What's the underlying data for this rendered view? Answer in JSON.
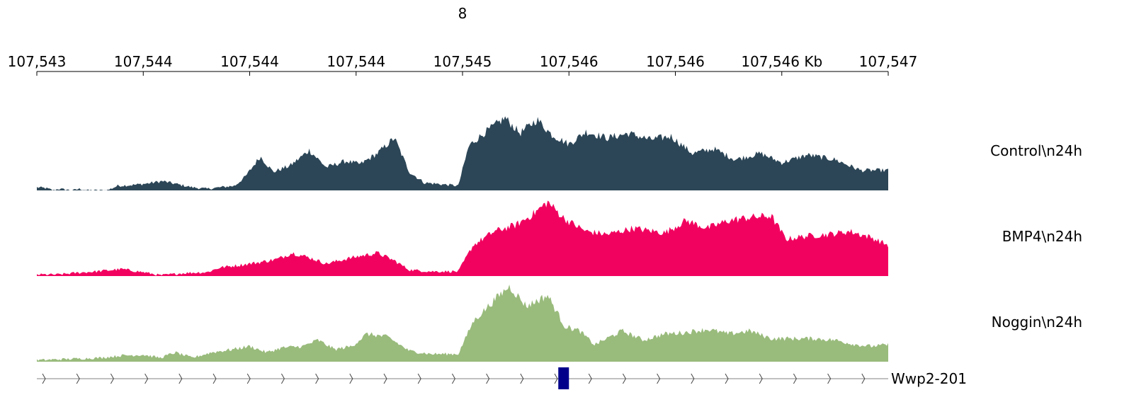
{
  "chart_data": {
    "type": "area",
    "title": "8",
    "xlim": [
      107543.0,
      107547.0
    ],
    "ticks": [
      {
        "value": 107543.0,
        "label": "107,543"
      },
      {
        "value": 107543.5,
        "label": "107,544"
      },
      {
        "value": 107544.0,
        "label": "107,544"
      },
      {
        "value": 107544.5,
        "label": "107,544"
      },
      {
        "value": 107545.0,
        "label": "107,545"
      },
      {
        "value": 107545.5,
        "label": "107,546"
      },
      {
        "value": 107546.0,
        "label": "107,546"
      },
      {
        "value": 107546.5,
        "label": "107,546 Kb"
      },
      {
        "value": 107547.0,
        "label": "107,547"
      }
    ],
    "ylim": [
      0,
      1
    ],
    "tracks": [
      {
        "name": "Control\\n24h",
        "color": "#2c4657",
        "profile": [
          [
            107543.0,
            0.04
          ],
          [
            107543.04,
            0.03
          ],
          [
            107543.08,
            0.0
          ],
          [
            107543.1,
            0.02
          ],
          [
            107543.17,
            0.0
          ],
          [
            107543.2,
            0.02
          ],
          [
            107543.24,
            0.0
          ],
          [
            107543.33,
            0.0
          ],
          [
            107543.38,
            0.06
          ],
          [
            107543.45,
            0.07
          ],
          [
            107543.52,
            0.09
          ],
          [
            107543.59,
            0.12
          ],
          [
            107543.66,
            0.08
          ],
          [
            107543.73,
            0.04
          ],
          [
            107543.8,
            0.02
          ],
          [
            107543.86,
            0.04
          ],
          [
            107543.93,
            0.06
          ],
          [
            107543.98,
            0.18
          ],
          [
            107544.05,
            0.44
          ],
          [
            107544.11,
            0.24
          ],
          [
            107544.19,
            0.32
          ],
          [
            107544.28,
            0.52
          ],
          [
            107544.36,
            0.3
          ],
          [
            107544.45,
            0.38
          ],
          [
            107544.52,
            0.34
          ],
          [
            107544.6,
            0.48
          ],
          [
            107544.68,
            0.68
          ],
          [
            107544.75,
            0.24
          ],
          [
            107544.82,
            0.1
          ],
          [
            107544.9,
            0.08
          ],
          [
            107544.98,
            0.06
          ],
          [
            107545.03,
            0.58
          ],
          [
            107545.1,
            0.74
          ],
          [
            107545.2,
            0.94
          ],
          [
            107545.27,
            0.74
          ],
          [
            107545.35,
            0.92
          ],
          [
            107545.42,
            0.72
          ],
          [
            107545.5,
            0.6
          ],
          [
            107545.58,
            0.76
          ],
          [
            107545.68,
            0.68
          ],
          [
            107545.78,
            0.74
          ],
          [
            107545.88,
            0.66
          ],
          [
            107545.98,
            0.7
          ],
          [
            107546.08,
            0.48
          ],
          [
            107546.18,
            0.54
          ],
          [
            107546.28,
            0.4
          ],
          [
            107546.4,
            0.48
          ],
          [
            107546.5,
            0.36
          ],
          [
            107546.62,
            0.46
          ],
          [
            107546.75,
            0.4
          ],
          [
            107546.87,
            0.26
          ],
          [
            107546.96,
            0.26
          ],
          [
            107547.0,
            0.26
          ]
        ]
      },
      {
        "name": "BMP4\\n24h",
        "color": "#f2025f",
        "profile": [
          [
            107543.0,
            0.02
          ],
          [
            107543.1,
            0.02
          ],
          [
            107543.18,
            0.04
          ],
          [
            107543.28,
            0.06
          ],
          [
            107543.4,
            0.09
          ],
          [
            107543.5,
            0.05
          ],
          [
            107543.58,
            0.01
          ],
          [
            107543.7,
            0.04
          ],
          [
            107543.8,
            0.05
          ],
          [
            107543.86,
            0.11
          ],
          [
            107543.95,
            0.14
          ],
          [
            107544.05,
            0.18
          ],
          [
            107544.13,
            0.22
          ],
          [
            107544.2,
            0.3
          ],
          [
            107544.28,
            0.24
          ],
          [
            107544.36,
            0.16
          ],
          [
            107544.45,
            0.22
          ],
          [
            107544.52,
            0.26
          ],
          [
            107544.6,
            0.3
          ],
          [
            107544.68,
            0.2
          ],
          [
            107544.75,
            0.08
          ],
          [
            107544.85,
            0.06
          ],
          [
            107544.98,
            0.06
          ],
          [
            107545.05,
            0.4
          ],
          [
            107545.15,
            0.58
          ],
          [
            107545.25,
            0.66
          ],
          [
            107545.33,
            0.8
          ],
          [
            107545.4,
            0.96
          ],
          [
            107545.48,
            0.74
          ],
          [
            107545.58,
            0.58
          ],
          [
            107545.68,
            0.54
          ],
          [
            107545.8,
            0.62
          ],
          [
            107545.95,
            0.56
          ],
          [
            107546.05,
            0.72
          ],
          [
            107546.15,
            0.62
          ],
          [
            107546.25,
            0.72
          ],
          [
            107546.35,
            0.76
          ],
          [
            107546.45,
            0.78
          ],
          [
            107546.52,
            0.48
          ],
          [
            107546.62,
            0.52
          ],
          [
            107546.72,
            0.54
          ],
          [
            107546.82,
            0.58
          ],
          [
            107546.92,
            0.5
          ],
          [
            107547.0,
            0.4
          ]
        ]
      },
      {
        "name": "Noggin\\n24h",
        "color": "#99bb7c",
        "profile": [
          [
            107543.0,
            0.02
          ],
          [
            107543.1,
            0.03
          ],
          [
            107543.2,
            0.04
          ],
          [
            107543.3,
            0.05
          ],
          [
            107543.4,
            0.08
          ],
          [
            107543.5,
            0.09
          ],
          [
            107543.58,
            0.05
          ],
          [
            107543.65,
            0.12
          ],
          [
            107543.73,
            0.05
          ],
          [
            107543.82,
            0.12
          ],
          [
            107543.92,
            0.16
          ],
          [
            107544.0,
            0.2
          ],
          [
            107544.08,
            0.12
          ],
          [
            107544.15,
            0.18
          ],
          [
            107544.25,
            0.2
          ],
          [
            107544.32,
            0.28
          ],
          [
            107544.4,
            0.16
          ],
          [
            107544.48,
            0.2
          ],
          [
            107544.55,
            0.36
          ],
          [
            107544.65,
            0.32
          ],
          [
            107544.75,
            0.14
          ],
          [
            107544.85,
            0.1
          ],
          [
            107544.98,
            0.1
          ],
          [
            107545.05,
            0.52
          ],
          [
            107545.15,
            0.8
          ],
          [
            107545.22,
            0.98
          ],
          [
            107545.3,
            0.72
          ],
          [
            107545.4,
            0.86
          ],
          [
            107545.48,
            0.46
          ],
          [
            107545.55,
            0.4
          ],
          [
            107545.62,
            0.22
          ],
          [
            107545.75,
            0.4
          ],
          [
            107545.85,
            0.28
          ],
          [
            107545.95,
            0.36
          ],
          [
            107546.05,
            0.38
          ],
          [
            107546.15,
            0.42
          ],
          [
            107546.25,
            0.36
          ],
          [
            107546.35,
            0.4
          ],
          [
            107546.45,
            0.3
          ],
          [
            107546.55,
            0.3
          ],
          [
            107546.65,
            0.3
          ],
          [
            107546.75,
            0.28
          ],
          [
            107546.85,
            0.22
          ],
          [
            107546.92,
            0.2
          ],
          [
            107547.0,
            0.22
          ]
        ]
      }
    ],
    "gene": {
      "name": "Wwp2-201",
      "strand": "+",
      "start": 107543.0,
      "end": 107547.0,
      "exons": [
        [
          107545.45,
          107545.5
        ]
      ],
      "line_color": "#808080",
      "exon_color": "#00008b"
    }
  }
}
